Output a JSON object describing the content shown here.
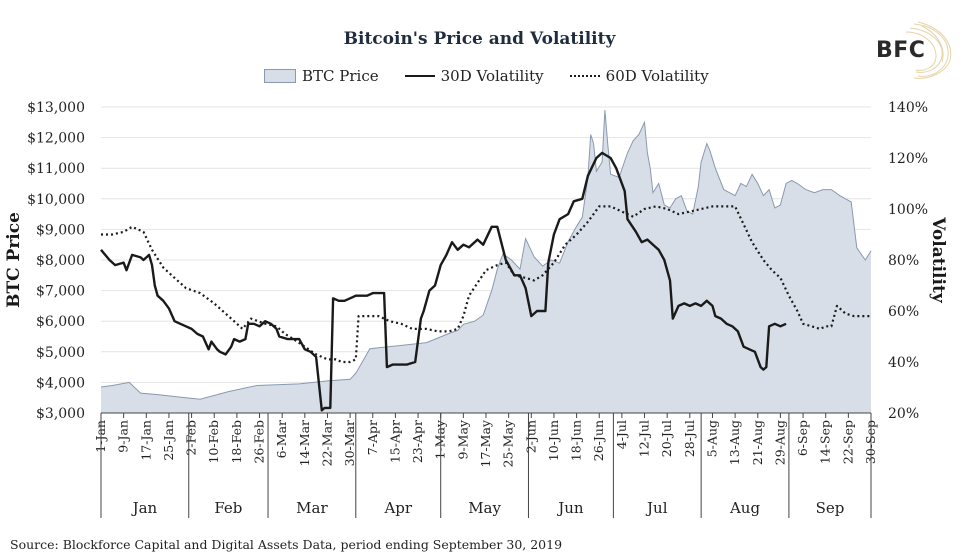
{
  "logo": {
    "text": "BFC"
  },
  "chart_data": {
    "type": "line",
    "title": "Bitcoin's Price and Volatility",
    "ylabel_left": "BTC Price",
    "ylabel_right": "Volatility",
    "y_left_lim": [
      3000,
      13000
    ],
    "y_right_lim": [
      20,
      140
    ],
    "y_left_ticks": [
      "$3,000",
      "$4,000",
      "$5,000",
      "$6,000",
      "$7,000",
      "$8,000",
      "$9,000",
      "$10,000",
      "$11,000",
      "$12,000",
      "$13,000"
    ],
    "y_right_ticks": [
      "20%",
      "40%",
      "60%",
      "80%",
      "100%",
      "120%",
      "140%"
    ],
    "x_ticks": [
      "1-Jan",
      "9-Jan",
      "17-Jan",
      "25-Jan",
      "2-Feb",
      "10-Feb",
      "18-Feb",
      "26-Feb",
      "6-Mar",
      "14-Mar",
      "22-Mar",
      "30-Mar",
      "7-Apr",
      "15-Apr",
      "23-Apr",
      "1-May",
      "9-May",
      "17-May",
      "25-May",
      "2-Jun",
      "10-Jun",
      "18-Jun",
      "26-Jun",
      "4-Jul",
      "12-Jul",
      "20-Jul",
      "28-Jul",
      "5-Aug",
      "13-Aug",
      "21-Aug",
      "29-Aug",
      "6-Sep",
      "14-Sep",
      "22-Sep",
      "30-Sep"
    ],
    "months": [
      "Jan",
      "Feb",
      "Mar",
      "Apr",
      "May",
      "Jun",
      "Jul",
      "Aug",
      "Sep"
    ],
    "grid": true,
    "legend_position": "top-center",
    "series": [
      {
        "name": "BTC Price",
        "axis": "left",
        "style": "area",
        "color": "#d8dee7",
        "stroke": "#8a99b0",
        "points": [
          [
            0,
            3850
          ],
          [
            4,
            3900
          ],
          [
            10,
            4000
          ],
          [
            14,
            3650
          ],
          [
            20,
            3600
          ],
          [
            30,
            3500
          ],
          [
            35,
            3450
          ],
          [
            45,
            3700
          ],
          [
            55,
            3900
          ],
          [
            70,
            3950
          ],
          [
            80,
            4050
          ],
          [
            88,
            4100
          ],
          [
            90,
            4300
          ],
          [
            95,
            5100
          ],
          [
            105,
            5200
          ],
          [
            115,
            5300
          ],
          [
            119,
            5450
          ],
          [
            123,
            5600
          ],
          [
            126,
            5700
          ],
          [
            128,
            5900
          ],
          [
            132,
            6000
          ],
          [
            135,
            6200
          ],
          [
            138,
            7000
          ],
          [
            140,
            7700
          ],
          [
            142,
            8200
          ],
          [
            145,
            8000
          ],
          [
            148,
            7700
          ],
          [
            150,
            8700
          ],
          [
            153,
            8100
          ],
          [
            156,
            7800
          ],
          [
            159,
            8000
          ],
          [
            162,
            7900
          ],
          [
            165,
            8600
          ],
          [
            168,
            9100
          ],
          [
            170,
            9400
          ],
          [
            172,
            10700
          ],
          [
            173,
            12100
          ],
          [
            174,
            11800
          ],
          [
            175,
            10900
          ],
          [
            177,
            11200
          ],
          [
            178,
            12900
          ],
          [
            179,
            11800
          ],
          [
            180,
            10800
          ],
          [
            183,
            10700
          ],
          [
            186,
            11500
          ],
          [
            188,
            11900
          ],
          [
            190,
            12100
          ],
          [
            192,
            12500
          ],
          [
            193,
            11500
          ],
          [
            194,
            11000
          ],
          [
            195,
            10200
          ],
          [
            197,
            10500
          ],
          [
            199,
            9800
          ],
          [
            201,
            9700
          ],
          [
            203,
            10000
          ],
          [
            205,
            10100
          ],
          [
            207,
            9600
          ],
          [
            209,
            9500
          ],
          [
            211,
            10400
          ],
          [
            212,
            11200
          ],
          [
            214,
            11800
          ],
          [
            215,
            11600
          ],
          [
            217,
            11000
          ],
          [
            220,
            10300
          ],
          [
            222,
            10200
          ],
          [
            224,
            10100
          ],
          [
            226,
            10500
          ],
          [
            228,
            10400
          ],
          [
            230,
            10800
          ],
          [
            232,
            10500
          ],
          [
            234,
            10100
          ],
          [
            236,
            10300
          ],
          [
            238,
            9700
          ],
          [
            240,
            9800
          ],
          [
            242,
            10500
          ],
          [
            244,
            10600
          ],
          [
            246,
            10500
          ],
          [
            249,
            10300
          ],
          [
            252,
            10200
          ],
          [
            255,
            10300
          ],
          [
            258,
            10300
          ],
          [
            261,
            10100
          ],
          [
            263,
            10000
          ],
          [
            265,
            9900
          ],
          [
            267,
            8400
          ],
          [
            270,
            8000
          ],
          [
            272,
            8300
          ]
        ]
      },
      {
        "name": "30D Volatility",
        "axis": "right",
        "style": "solid",
        "color": "#1a1a1a",
        "points": [
          [
            0,
            84
          ],
          [
            3,
            80
          ],
          [
            5,
            78
          ],
          [
            8,
            79
          ],
          [
            9,
            76
          ],
          [
            11,
            82
          ],
          [
            14,
            81
          ],
          [
            15,
            80
          ],
          [
            17,
            82
          ],
          [
            18,
            78
          ],
          [
            19,
            70
          ],
          [
            20,
            66
          ],
          [
            22,
            64
          ],
          [
            24,
            61
          ],
          [
            26,
            56
          ],
          [
            28,
            55
          ],
          [
            30,
            54
          ],
          [
            32,
            53
          ],
          [
            34,
            51
          ],
          [
            36,
            50
          ],
          [
            38,
            45
          ],
          [
            39,
            48
          ],
          [
            41,
            45
          ],
          [
            42,
            44
          ],
          [
            44,
            43
          ],
          [
            46,
            46
          ],
          [
            47,
            49
          ],
          [
            49,
            48
          ],
          [
            51,
            49
          ],
          [
            52,
            55
          ],
          [
            54,
            55
          ],
          [
            56,
            54
          ],
          [
            58,
            56
          ],
          [
            60,
            55
          ],
          [
            62,
            53
          ],
          [
            63,
            50
          ],
          [
            66,
            49
          ],
          [
            70,
            49
          ],
          [
            72,
            45
          ],
          [
            74,
            44
          ],
          [
            76,
            42
          ],
          [
            78,
            21
          ],
          [
            79,
            22
          ],
          [
            81,
            22
          ],
          [
            82,
            65
          ],
          [
            84,
            64
          ],
          [
            86,
            64
          ],
          [
            88,
            65
          ],
          [
            90,
            66
          ],
          [
            92,
            66
          ],
          [
            94,
            66
          ],
          [
            96,
            67
          ],
          [
            99,
            67
          ],
          [
            100,
            67
          ],
          [
            101,
            38
          ],
          [
            103,
            39
          ],
          [
            106,
            39
          ],
          [
            108,
            39
          ],
          [
            111,
            40
          ],
          [
            113,
            57
          ],
          [
            114,
            60
          ],
          [
            116,
            68
          ],
          [
            118,
            70
          ],
          [
            120,
            78
          ],
          [
            122,
            82
          ],
          [
            124,
            87
          ],
          [
            126,
            84
          ],
          [
            128,
            86
          ],
          [
            130,
            85
          ],
          [
            133,
            88
          ],
          [
            135,
            86
          ],
          [
            138,
            93
          ],
          [
            140,
            93
          ],
          [
            143,
            80
          ],
          [
            146,
            74
          ],
          [
            148,
            74
          ],
          [
            150,
            69
          ],
          [
            152,
            58
          ],
          [
            154,
            60
          ],
          [
            157,
            60
          ],
          [
            158,
            79
          ],
          [
            160,
            90
          ],
          [
            162,
            96
          ],
          [
            165,
            98
          ],
          [
            167,
            103
          ],
          [
            170,
            104
          ],
          [
            172,
            113
          ],
          [
            175,
            120
          ],
          [
            177,
            122
          ],
          [
            180,
            120
          ],
          [
            182,
            116
          ],
          [
            185,
            107
          ],
          [
            186,
            96
          ],
          [
            189,
            91
          ],
          [
            191,
            87
          ],
          [
            193,
            88
          ],
          [
            195,
            86
          ],
          [
            197,
            84
          ],
          [
            199,
            80
          ],
          [
            201,
            72
          ],
          [
            202,
            57
          ],
          [
            204,
            62
          ],
          [
            206,
            63
          ],
          [
            208,
            62
          ],
          [
            210,
            63
          ],
          [
            212,
            62
          ],
          [
            214,
            64
          ],
          [
            216,
            62
          ],
          [
            217,
            58
          ],
          [
            219,
            57
          ],
          [
            221,
            55
          ],
          [
            223,
            54
          ],
          [
            225,
            52
          ],
          [
            227,
            46
          ],
          [
            229,
            45
          ],
          [
            231,
            44
          ],
          [
            233,
            38
          ],
          [
            234,
            37
          ],
          [
            235,
            38
          ],
          [
            236,
            54
          ],
          [
            238,
            55
          ],
          [
            240,
            54
          ],
          [
            242,
            55
          ]
        ]
      },
      {
        "name": "60D Volatility",
        "axis": "right",
        "style": "dotted",
        "color": "#1a1a1a",
        "points": [
          [
            0,
            90
          ],
          [
            4,
            90
          ],
          [
            8,
            91
          ],
          [
            11,
            93
          ],
          [
            15,
            91
          ],
          [
            18,
            84
          ],
          [
            22,
            77
          ],
          [
            26,
            73
          ],
          [
            30,
            69
          ],
          [
            35,
            67
          ],
          [
            40,
            63
          ],
          [
            44,
            59
          ],
          [
            47,
            56
          ],
          [
            50,
            53
          ],
          [
            53,
            57
          ],
          [
            58,
            55
          ],
          [
            62,
            54
          ],
          [
            65,
            51
          ],
          [
            68,
            49
          ],
          [
            72,
            46
          ],
          [
            76,
            43
          ],
          [
            80,
            41
          ],
          [
            83,
            41
          ],
          [
            85,
            40
          ],
          [
            88,
            40
          ],
          [
            90,
            41
          ],
          [
            91,
            58
          ],
          [
            95,
            58
          ],
          [
            98,
            58
          ],
          [
            102,
            56
          ],
          [
            106,
            55
          ],
          [
            110,
            53
          ],
          [
            115,
            53
          ],
          [
            119,
            52
          ],
          [
            123,
            52
          ],
          [
            126,
            53
          ],
          [
            128,
            58
          ],
          [
            130,
            66
          ],
          [
            133,
            71
          ],
          [
            136,
            76
          ],
          [
            140,
            78
          ],
          [
            143,
            79
          ],
          [
            146,
            74
          ],
          [
            150,
            73
          ],
          [
            153,
            72
          ],
          [
            156,
            74
          ],
          [
            160,
            79
          ],
          [
            164,
            86
          ],
          [
            168,
            90
          ],
          [
            172,
            95
          ],
          [
            176,
            101
          ],
          [
            180,
            101
          ],
          [
            184,
            99
          ],
          [
            188,
            97
          ],
          [
            192,
            100
          ],
          [
            196,
            101
          ],
          [
            200,
            100
          ],
          [
            204,
            98
          ],
          [
            208,
            99
          ],
          [
            212,
            100
          ],
          [
            216,
            101
          ],
          [
            220,
            101
          ],
          [
            224,
            101
          ],
          [
            227,
            94
          ],
          [
            230,
            87
          ],
          [
            234,
            80
          ],
          [
            237,
            76
          ],
          [
            240,
            73
          ],
          [
            243,
            66
          ],
          [
            246,
            60
          ],
          [
            248,
            55
          ],
          [
            251,
            54
          ],
          [
            254,
            53
          ],
          [
            256,
            54
          ],
          [
            258,
            54
          ],
          [
            260,
            62
          ],
          [
            263,
            59
          ],
          [
            266,
            58
          ],
          [
            272,
            58
          ]
        ]
      }
    ]
  },
  "source": "Source: Blockforce Capital and Digital Assets Data, period ending September 30, 2019"
}
